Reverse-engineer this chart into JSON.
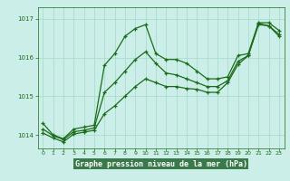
{
  "title": "Graphe pression niveau de la mer (hPa)",
  "bg_color": "#cceee8",
  "grid_color": "#aaddcc",
  "line_color": "#1a6b1a",
  "axis_label_bg": "#4a9a5a",
  "xlim": [
    -0.5,
    23.5
  ],
  "ylim": [
    1013.65,
    1017.3
  ],
  "yticks": [
    1014,
    1015,
    1016,
    1017
  ],
  "xticks": [
    0,
    1,
    2,
    3,
    4,
    5,
    6,
    7,
    8,
    9,
    10,
    11,
    12,
    13,
    14,
    15,
    16,
    17,
    18,
    19,
    20,
    21,
    22,
    23
  ],
  "series1": [
    1014.3,
    1014.0,
    1013.9,
    1014.15,
    1014.2,
    1014.25,
    1015.8,
    1016.1,
    1016.55,
    1016.75,
    1016.85,
    1016.1,
    1015.95,
    1015.95,
    1015.85,
    1015.65,
    1015.45,
    1015.45,
    1015.5,
    1016.05,
    1016.1,
    1016.9,
    1016.9,
    1016.7
  ],
  "series2": [
    1014.15,
    1013.98,
    1013.88,
    1014.08,
    1014.12,
    1014.18,
    1015.1,
    1015.35,
    1015.65,
    1015.95,
    1016.15,
    1015.85,
    1015.6,
    1015.55,
    1015.45,
    1015.35,
    1015.25,
    1015.25,
    1015.4,
    1015.9,
    1016.05,
    1016.85,
    1016.82,
    1016.6
  ],
  "series3": [
    1014.05,
    1013.92,
    1013.82,
    1014.02,
    1014.07,
    1014.12,
    1014.55,
    1014.75,
    1015.0,
    1015.25,
    1015.45,
    1015.35,
    1015.25,
    1015.25,
    1015.2,
    1015.18,
    1015.1,
    1015.1,
    1015.35,
    1015.82,
    1016.05,
    1016.88,
    1016.82,
    1016.55
  ]
}
